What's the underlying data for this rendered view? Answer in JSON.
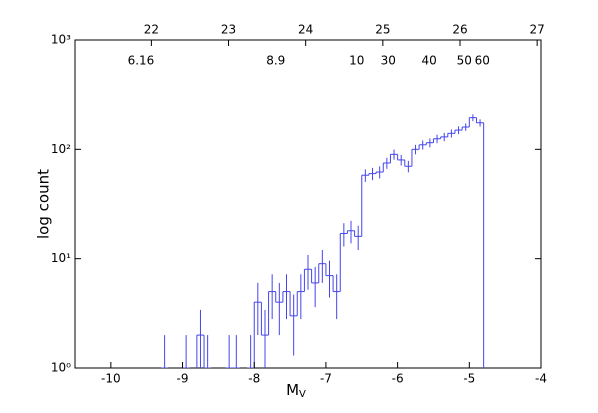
{
  "chart_data": {
    "type": "histogram",
    "xlabel": "M",
    "xlabel_sub": "V",
    "ylabel": "log count",
    "xlim": [
      -10.5,
      -4
    ],
    "xticks": [
      -10,
      -9,
      -8,
      -7,
      -6,
      -5,
      -4
    ],
    "x2lim": [
      21.01,
      27.05
    ],
    "x2ticks": [
      22,
      23,
      24,
      25,
      26,
      27
    ],
    "ylim": [
      1,
      1000
    ],
    "log_y": true,
    "yticks": [
      {
        "value": 1,
        "label": "10⁰"
      },
      {
        "value": 10,
        "label": "10¹"
      },
      {
        "value": 100,
        "label": "10²"
      },
      {
        "value": 1000,
        "label": "10³"
      }
    ],
    "color": "#4444ee",
    "bins": [
      -9.4,
      -9.3,
      -9.2,
      -9.1,
      -9.0,
      -8.9,
      -8.8,
      -8.7,
      -8.6,
      -8.5,
      -8.4,
      -8.3,
      -8.2,
      -8.1,
      -8.0,
      -7.9,
      -7.8,
      -7.7,
      -7.6,
      -7.5,
      -7.4,
      -7.3,
      -7.2,
      -7.1,
      -7.0,
      -6.9,
      -6.8,
      -6.7,
      -6.6,
      -6.5,
      -6.4,
      -6.3,
      -6.2,
      -6.1,
      -6.0,
      -5.9,
      -5.8,
      -5.7,
      -5.6,
      -5.5,
      -5.4,
      -5.3,
      -5.2,
      -5.1,
      -5.0,
      -4.9,
      -4.8
    ],
    "values": [
      null,
      1,
      null,
      null,
      1,
      null,
      2,
      1,
      null,
      null,
      1,
      1,
      null,
      1,
      4,
      2,
      5,
      4,
      5,
      3,
      5,
      8,
      6,
      9,
      7,
      5,
      17,
      18,
      16,
      58,
      60,
      62,
      75,
      90,
      80,
      70,
      100,
      110,
      115,
      125,
      130,
      140,
      150,
      160,
      195,
      175
    ],
    "errors": [
      null,
      1,
      null,
      null,
      1,
      null,
      1.4,
      1,
      null,
      null,
      1,
      1,
      null,
      1,
      2,
      1.4,
      2.2,
      2,
      2.2,
      1.7,
      2.2,
      2.8,
      2.4,
      3,
      2.6,
      2.2,
      4.1,
      4.2,
      4,
      7.6,
      7.7,
      7.9,
      8.7,
      9.5,
      8.9,
      8.4,
      10,
      10.5,
      10.7,
      11.2,
      11.4,
      11.8,
      12.2,
      12.6,
      14,
      13.2
    ],
    "annotations": [
      {
        "text": "6.16",
        "x": -9.58
      },
      {
        "text": "8.9",
        "x": -7.7
      },
      {
        "text": "10",
        "x": -6.57
      },
      {
        "text": "30",
        "x": -6.13
      },
      {
        "text": "40",
        "x": -5.56
      },
      {
        "text": "50",
        "x": -5.07
      },
      {
        "text": "60",
        "x": -4.82
      }
    ]
  }
}
